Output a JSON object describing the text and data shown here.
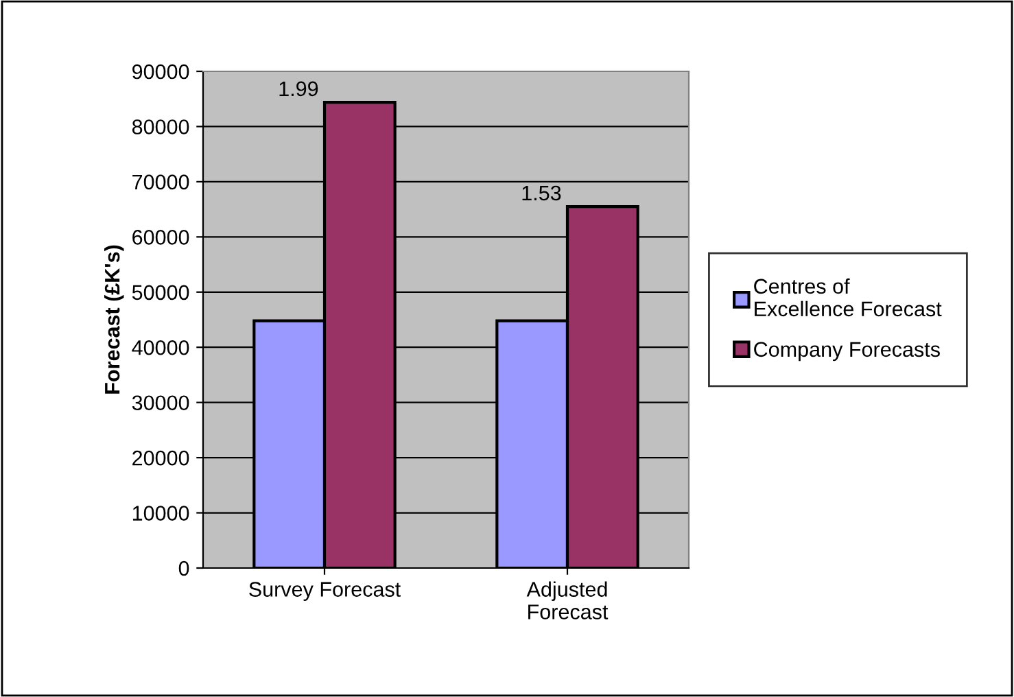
{
  "chart_data": {
    "type": "bar",
    "categories": [
      "Survey Forecast",
      "Adjusted\nForecast"
    ],
    "ylabel": "Forecast (£K's)",
    "series": [
      {
        "name": "Centres of\nExcellence Forecast",
        "color": "#9999ff",
        "values": [
          44800,
          44800
        ]
      },
      {
        "name": "Company Forecasts",
        "color": "#993366",
        "values": [
          84400,
          65500
        ]
      }
    ],
    "ylim": [
      0,
      90000
    ],
    "yticks": [
      0,
      10000,
      20000,
      30000,
      40000,
      50000,
      60000,
      70000,
      80000,
      90000
    ],
    "grid": "y",
    "legend": "right",
    "annotations": [
      "1.99",
      "1.53"
    ]
  }
}
